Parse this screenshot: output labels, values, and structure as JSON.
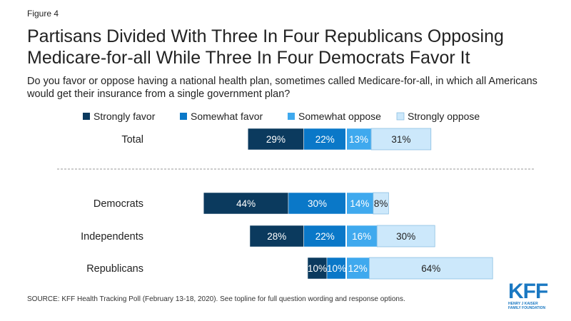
{
  "figure_label": "Figure 4",
  "title_lines": [
    "Partisans Divided With Three In Four Republicans Opposing",
    "Medicare-for-all While Three In Four Democrats Favor It"
  ],
  "subtitle": "Do you favor or oppose having a national health plan, sometimes called Medicare-for-all, in which all Americans would get their insurance from a single government plan?",
  "source": "SOURCE: KFF Health Tracking Poll (February 13-18, 2020). See topline for full question wording and response options.",
  "logo": {
    "mark": "KFF",
    "line1": "HENRY J KAISER",
    "line2": "FAMILY FOUNDATION"
  },
  "colors": {
    "strongly_favor": "#0b3a5e",
    "somewhat_favor": "#0a78c8",
    "somewhat_oppose": "#3fa9ee",
    "strongly_oppose": "#cce8fb",
    "divider": "#999999"
  },
  "chart_data": {
    "type": "bar",
    "orientation": "horizontal-diverging",
    "categories": [
      "Total",
      "Democrats",
      "Independents",
      "Republicans"
    ],
    "series": [
      {
        "name": "Strongly favor",
        "side": "favor",
        "values": [
          29,
          44,
          28,
          10
        ],
        "labels": [
          "29%",
          "44%",
          "28%",
          "10%"
        ]
      },
      {
        "name": "Somewhat favor",
        "side": "favor",
        "values": [
          22,
          30,
          22,
          10
        ],
        "labels": [
          "22%",
          "30%",
          "22%",
          "10%"
        ]
      },
      {
        "name": "Somewhat oppose",
        "side": "oppose",
        "values": [
          13,
          14,
          16,
          12
        ],
        "labels": [
          "13%",
          "14%",
          "16%",
          "12%"
        ]
      },
      {
        "name": "Strongly oppose",
        "side": "oppose",
        "values": [
          31,
          8,
          30,
          64
        ],
        "labels": [
          "31%",
          "8%",
          "30%",
          "64%"
        ]
      }
    ],
    "legend_position": "top",
    "divider_after_category": "Total"
  }
}
